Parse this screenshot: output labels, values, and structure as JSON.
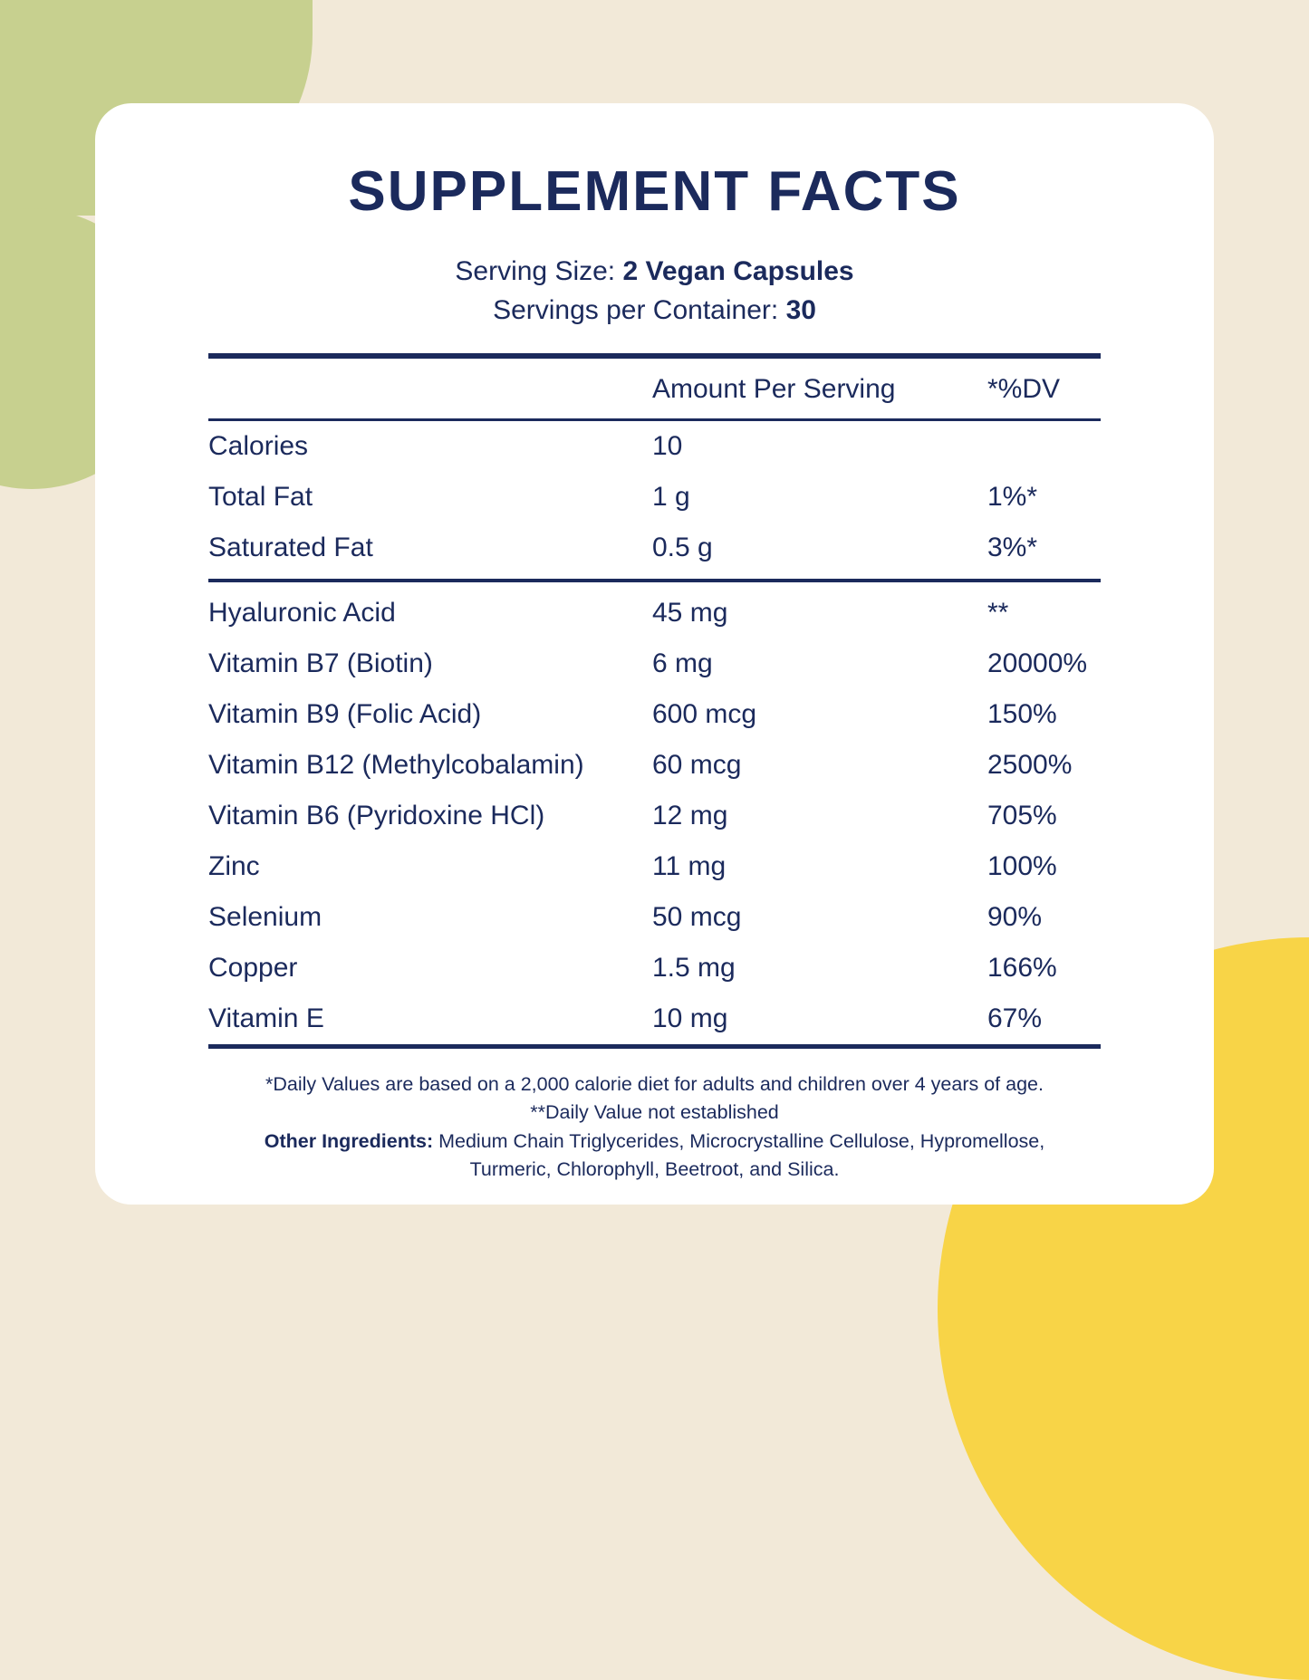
{
  "title": "SUPPLEMENT FACTS",
  "serving": {
    "size_label": "Serving Size: ",
    "size_value": "2 Vegan Capsules",
    "container_label": "Servings per Container: ",
    "container_value": "30"
  },
  "table": {
    "col_amount": "Amount Per Serving",
    "col_dv": "*%DV",
    "top_rows": [
      {
        "name": "Calories",
        "amount": "10",
        "dv": ""
      },
      {
        "name": "Total Fat",
        "amount": "1 g",
        "dv": "1%*"
      },
      {
        "name": "Saturated Fat",
        "amount": "0.5 g",
        "dv": "3%*"
      }
    ],
    "rows": [
      {
        "name": "Hyaluronic Acid",
        "amount": "45 mg",
        "dv": "**"
      },
      {
        "name": "Vitamin B7 (Biotin)",
        "amount": "6 mg",
        "dv": "20000%"
      },
      {
        "name": "Vitamin B9 (Folic Acid)",
        "amount": "600 mcg",
        "dv": "150%"
      },
      {
        "name": "Vitamin B12 (Methylcobalamin)",
        "amount": "60 mcg",
        "dv": "2500%"
      },
      {
        "name": "Vitamin B6 (Pyridoxine HCl)",
        "amount": "12 mg",
        "dv": "705%"
      },
      {
        "name": "Zinc",
        "amount": "11 mg",
        "dv": "100%"
      },
      {
        "name": "Selenium",
        "amount": "50 mcg",
        "dv": "90%"
      },
      {
        "name": "Copper",
        "amount": "1.5 mg",
        "dv": "166%"
      },
      {
        "name": "Vitamin E",
        "amount": "10 mg",
        "dv": "67%"
      }
    ]
  },
  "footnotes": {
    "daily_values": "*Daily Values are based on a 2,000 calorie diet for adults and children over 4 years of age.",
    "not_established": "**Daily Value not established",
    "other_ingredients_label": "Other Ingredients:",
    "other_ingredients_text": " Medium Chain Triglycerides, Microcrystalline Cellulose, Hypromellose, Turmeric, Chlorophyll, Beetroot, and Silica."
  },
  "colors": {
    "navy": "#1b2a5c",
    "green": "#c7d08f",
    "yellow": "#f8d447",
    "cream": "#f2e9d8",
    "card": "#ffffff"
  }
}
